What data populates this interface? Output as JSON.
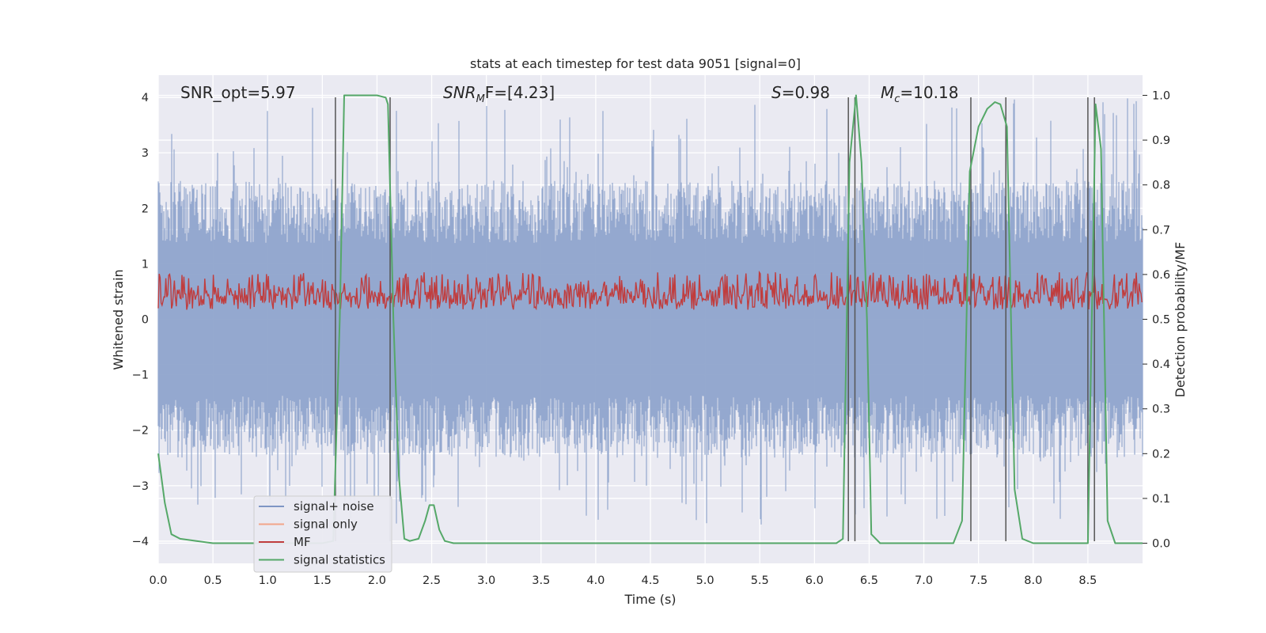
{
  "chart_data": {
    "type": "line",
    "title": "stats at each timestep for test data 9051 [signal=0]",
    "xlabel": "Time (s)",
    "ylabel_left": "Whitened strain",
    "ylabel_right": "Detection probability/MF",
    "xlim": [
      0,
      9.0
    ],
    "ylim_left": [
      -4.4,
      4.4
    ],
    "ylim_right": [
      -0.045,
      1.045
    ],
    "xticks": [
      "0.0",
      "0.5",
      "1.0",
      "1.5",
      "2.0",
      "2.5",
      "3.0",
      "3.5",
      "4.0",
      "4.5",
      "5.0",
      "5.5",
      "6.0",
      "6.5",
      "7.0",
      "7.5",
      "8.0",
      "8.5"
    ],
    "xtick_values": [
      0,
      0.5,
      1,
      1.5,
      2,
      2.5,
      3,
      3.5,
      4,
      4.5,
      5,
      5.5,
      6,
      6.5,
      7,
      7.5,
      8,
      8.5
    ],
    "yticks_left": [
      "−4",
      "−3",
      "−2",
      "−1",
      "0",
      "1",
      "2",
      "3",
      "4"
    ],
    "ytick_values_left": [
      -4,
      -3,
      -2,
      -1,
      0,
      1,
      2,
      3,
      4
    ],
    "yticks_right": [
      "0.0",
      "0.1",
      "0.2",
      "0.3",
      "0.4",
      "0.5",
      "0.6",
      "0.7",
      "0.8",
      "0.9",
      "1.0"
    ],
    "ytick_values_right": [
      0,
      0.1,
      0.2,
      0.3,
      0.4,
      0.5,
      0.6,
      0.7,
      0.8,
      0.9,
      1.0
    ],
    "grid": true,
    "legend_position": "lower-left",
    "legend": [
      {
        "name": "signal+ noise",
        "color": "#7f96c4"
      },
      {
        "name": "signal only",
        "color": "#f2a58a"
      },
      {
        "name": "MF",
        "color": "#c03d3e"
      },
      {
        "name": "signal statistics",
        "color": "#55a868"
      }
    ],
    "annotations": {
      "snr_opt": "SNR_opt=5.97",
      "snr_mf_base": "SNR",
      "snr_mf_sub": "M",
      "snr_mf_rest": "F=[4.23]",
      "s_label": "S",
      "s_rest": "=0.98",
      "mc_base": "M",
      "mc_sub": "c",
      "mc_rest": "=10.18"
    },
    "noise_envelope": {
      "low": -2.5,
      "high": 2.5,
      "peak_max": 4.0,
      "peak_min": -3.7
    },
    "mf_band": {
      "low": 0.05,
      "high": 0.85
    },
    "vertical_lines": [
      1.62,
      2.12,
      6.31,
      6.37,
      7.43,
      7.75,
      8.5,
      8.56
    ],
    "signal_statistics": {
      "x": [
        0.0,
        0.06,
        0.12,
        0.2,
        0.35,
        0.5,
        1.0,
        1.5,
        1.6,
        1.66,
        1.7,
        1.75,
        2.0,
        2.08,
        2.1,
        2.15,
        2.2,
        2.25,
        2.3,
        2.38,
        2.44,
        2.48,
        2.52,
        2.57,
        2.62,
        2.7,
        3.0,
        4.0,
        5.0,
        5.5,
        6.0,
        6.2,
        6.26,
        6.32,
        6.38,
        6.43,
        6.48,
        6.52,
        6.6,
        7.0,
        7.2,
        7.27,
        7.35,
        7.42,
        7.5,
        7.58,
        7.65,
        7.7,
        7.76,
        7.83,
        7.9,
        8.0,
        8.2,
        8.45,
        8.5,
        8.57,
        8.62,
        8.68,
        8.75,
        8.85,
        9.0
      ],
      "y": [
        0.2,
        0.09,
        0.02,
        0.01,
        0.005,
        0.0,
        0.0,
        0.0,
        0.005,
        0.5,
        1.0,
        1.0,
        1.0,
        0.995,
        0.98,
        0.5,
        0.15,
        0.01,
        0.005,
        0.01,
        0.05,
        0.085,
        0.085,
        0.03,
        0.005,
        0.0,
        0.0,
        0.0,
        0.0,
        0.0,
        0.0,
        0.0,
        0.01,
        0.85,
        1.0,
        0.85,
        0.5,
        0.02,
        0.0,
        0.0,
        0.0,
        0.0,
        0.05,
        0.83,
        0.93,
        0.97,
        0.985,
        0.98,
        0.93,
        0.12,
        0.01,
        0.0,
        0.0,
        0.0,
        0.0,
        0.98,
        0.88,
        0.05,
        0.0,
        0.0,
        0.0
      ]
    }
  }
}
